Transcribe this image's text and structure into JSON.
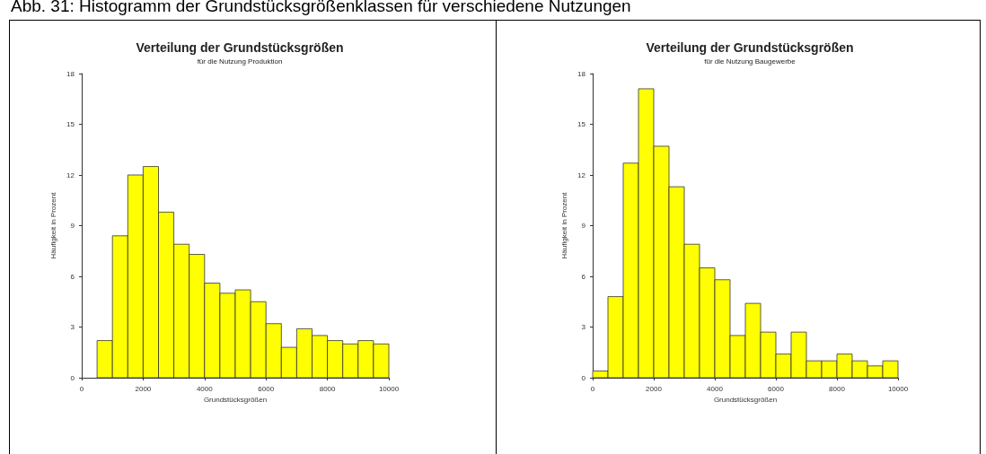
{
  "chart_data": [
    {
      "type": "histogram",
      "title": "Verteilung der Grundstücksgrößen",
      "subtitle": "für die Nutzung Produktion",
      "xlabel": "Grundstücksgrößen",
      "ylabel": "Häufigkeit in Prozent",
      "annotations": [
        "Abb. 31: Histogramm der Grundstücksgrößenklassen für verschiedene Nutzungen"
      ],
      "color": "#ffff00",
      "bins": [
        500,
        1000,
        1500,
        2000,
        2500,
        3000,
        3500,
        4000,
        4500,
        5000,
        5500,
        6000,
        6500,
        7000,
        7500,
        8000,
        8500,
        9000,
        9500,
        10000
      ],
      "values": [
        2.2,
        8.4,
        12.0,
        12.5,
        9.8,
        7.9,
        7.3,
        5.6,
        5.0,
        5.2,
        4.5,
        3.2,
        1.8,
        2.9,
        2.5,
        2.2,
        2.0,
        2.2,
        2.0
      ],
      "xlim": [
        0,
        10000
      ],
      "xticks": [
        0,
        2000,
        4000,
        6000,
        8000,
        10000
      ],
      "ylim": [
        0,
        18
      ],
      "yticks": [
        0,
        3,
        6,
        9,
        12,
        15,
        18
      ],
      "grid": false
    },
    {
      "type": "histogram",
      "title": "Verteilung der Grundstücksgrößen",
      "subtitle": "für die Nutzung Baugewerbe",
      "xlabel": "Grundstücksgrößen",
      "ylabel": "Häufigkeit in Prozent",
      "color": "#ffff00",
      "bins": [
        0,
        500,
        1000,
        1500,
        2000,
        2500,
        3000,
        3500,
        4000,
        4500,
        5000,
        5500,
        6000,
        6500,
        7000,
        7500,
        8000,
        8500,
        9000,
        9500,
        10000
      ],
      "values": [
        0.4,
        4.8,
        12.7,
        17.1,
        13.7,
        11.3,
        7.9,
        6.5,
        5.8,
        2.5,
        4.4,
        2.7,
        1.4,
        2.7,
        1.0,
        1.0,
        1.4,
        1.0,
        0.7,
        1.0
      ],
      "xlim": [
        0,
        10000
      ],
      "xticks": [
        0,
        2000,
        4000,
        6000,
        8000,
        10000
      ],
      "ylim": [
        0,
        18
      ],
      "yticks": [
        0,
        3,
        6,
        9,
        12,
        15,
        18
      ],
      "grid": false
    }
  ]
}
